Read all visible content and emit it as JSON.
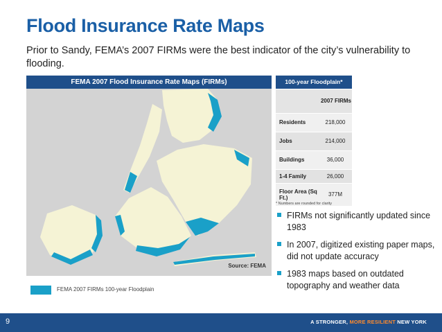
{
  "slide": {
    "title": "Flood Insurance Rate Maps",
    "subtitle": "Prior to Sandy, FEMA’s 2007 FIRMs were the best indicator of the city’s vulnerability to flooding.",
    "page_number": "9"
  },
  "map": {
    "header": "FEMA 2007 Flood Insurance Rate Maps (FIRMs)",
    "source": "Source: FEMA",
    "legend_label": "FEMA 2007 FIRMs 100-year Floodplain",
    "colors": {
      "water": "#d3d3d3",
      "land": "#f5f3d5",
      "flood": "#1aa0c8"
    }
  },
  "table": {
    "header": "100-year Floodplain*",
    "column": "2007 FIRMs",
    "rows": [
      {
        "label": "Residents",
        "value": "218,000"
      },
      {
        "label": "Jobs",
        "value": "214,000"
      },
      {
        "label": "Buildings",
        "value": "36,000"
      },
      {
        "label": "1-4 Family",
        "value": "26,000"
      },
      {
        "label": "Floor Area (Sq Ft.)",
        "value": "377M"
      }
    ],
    "footnote": "* Numbers are rounded for clarity"
  },
  "bullets": [
    "FIRMs not significantly updated since 1983",
    "In 2007, digitized existing paper maps, did not update accuracy",
    "1983 maps based on outdated topography and weather data"
  ],
  "footer": {
    "tag_prefix": "A STRONGER, ",
    "tag_accent": "MORE RESILIENT",
    "tag_suffix": " NEW YORK"
  }
}
